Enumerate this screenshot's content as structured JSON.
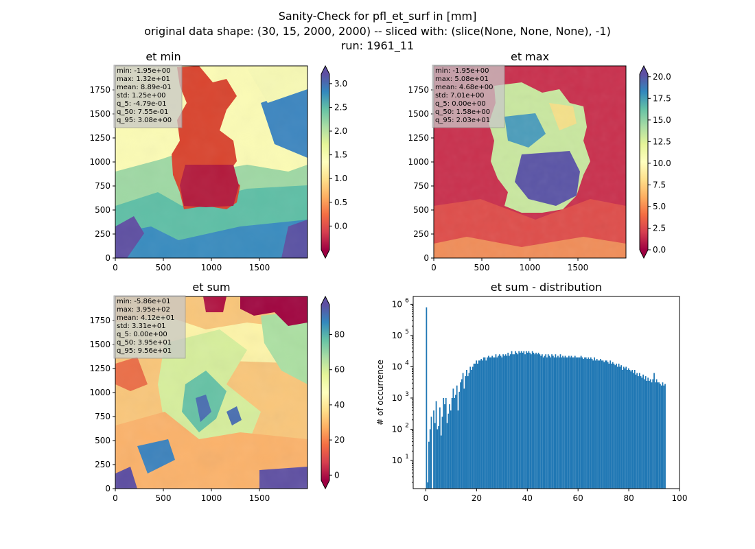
{
  "figure": {
    "title_lines": [
      "Sanity-Check for pfl_et_surf in [mm]",
      "original data shape: (30, 15, 2000, 2000) -- sliced with: (slice(None, None, None), -1)",
      "run: 1961_11"
    ]
  },
  "chart_data": [
    {
      "type": "heatmap",
      "title": "et min",
      "colormap": "Spectral",
      "xlim": [
        0,
        2000
      ],
      "ylim": [
        0,
        2000
      ],
      "xticks": [
        0,
        500,
        1000,
        1500
      ],
      "yticks": [
        0,
        250,
        500,
        750,
        1000,
        1250,
        1500,
        1750
      ],
      "colorbar": {
        "vmin": -0.5,
        "vmax": 3.2,
        "ticks": [
          0.0,
          0.5,
          1.0,
          1.5,
          2.0,
          2.5,
          3.0
        ],
        "tick_labels": [
          "0.0",
          "0.5",
          "1.0",
          "1.5",
          "2.0",
          "2.5",
          "3.0"
        ]
      },
      "stats": [
        "min: -1.95e+00",
        "max: 1.32e+01",
        "mean: 8.89e-01",
        "std: 1.25e+00",
        "q_5: -4.79e-01",
        "q_50: 7.55e-01",
        "q_95: 3.08e+00"
      ]
    },
    {
      "type": "heatmap",
      "title": "et max",
      "colormap": "Spectral",
      "xlim": [
        0,
        2000
      ],
      "ylim": [
        0,
        2000
      ],
      "xticks": [
        0,
        500,
        1000,
        1500
      ],
      "yticks": [
        0,
        250,
        500,
        750,
        1000,
        1250,
        1500,
        1750
      ],
      "colorbar": {
        "vmin": 0.0,
        "vmax": 20.3,
        "ticks": [
          0.0,
          2.5,
          5.0,
          7.5,
          10.0,
          12.5,
          15.0,
          17.5,
          20.0
        ],
        "tick_labels": [
          "0.0",
          "2.5",
          "5.0",
          "7.5",
          "10.0",
          "12.5",
          "15.0",
          "17.5",
          "20.0"
        ]
      },
      "stats": [
        "min: -1.95e+00",
        "max: 5.08e+01",
        "mean: 4.68e+00",
        "std: 7.01e+00",
        "q_5: 0.00e+00",
        "q_50: 1.58e+00",
        "q_95: 2.03e+01"
      ]
    },
    {
      "type": "heatmap",
      "title": "et sum",
      "colormap": "Spectral",
      "xlim": [
        0,
        2000
      ],
      "ylim": [
        0,
        2000
      ],
      "xticks": [
        0,
        500,
        1000,
        1500
      ],
      "yticks": [
        0,
        250,
        500,
        750,
        1000,
        1250,
        1500,
        1750
      ],
      "colorbar": {
        "vmin": -3,
        "vmax": 97,
        "ticks": [
          0,
          20,
          40,
          60,
          80
        ],
        "tick_labels": [
          "0",
          "20",
          "40",
          "60",
          "80"
        ]
      },
      "stats": [
        "min: -5.86e+01",
        "max: 3.95e+02",
        "mean: 4.12e+01",
        "std: 3.31e+01",
        "q_5: 0.00e+00",
        "q_50: 3.95e+01",
        "q_95: 9.56e+01"
      ]
    },
    {
      "type": "bar",
      "title": "et sum - distribution",
      "ylabel": "# of occurrence",
      "yscale": "log",
      "color": "#1f77b4",
      "xlim": [
        -5,
        100
      ],
      "ylim_log10": [
        0.1,
        6.25
      ],
      "xticks": [
        0,
        20,
        40,
        60,
        80,
        100
      ],
      "xtick_labels": [
        "0",
        "20",
        "40",
        "60",
        "80",
        "100"
      ],
      "yticks": [
        1,
        2,
        3,
        4,
        5,
        6
      ],
      "ytick_base": "10",
      "bin_start": 0,
      "bin_width": 0.48,
      "counts_log10": [
        5.9,
        0.3,
        1.6,
        2.0,
        2.4,
        0.1,
        2.6,
        2.2,
        2.9,
        2.0,
        2.1,
        2.7,
        1.8,
        2.4,
        3.0,
        2.8,
        3.0,
        2.2,
        2.5,
        2.8,
        2.6,
        3.0,
        3.3,
        3.0,
        3.1,
        3.4,
        2.6,
        3.2,
        3.5,
        3.6,
        3.8,
        3.3,
        3.7,
        3.9,
        3.7,
        3.8,
        4.0,
        3.9,
        4.0,
        4.1,
        4.1,
        4.2,
        4.1,
        4.2,
        4.2,
        4.25,
        4.2,
        4.3,
        4.3,
        4.2,
        4.3,
        4.35,
        4.3,
        4.3,
        4.35,
        4.3,
        4.3,
        4.4,
        4.3,
        4.35,
        4.4,
        4.35,
        4.3,
        4.4,
        4.35,
        4.4,
        4.35,
        4.45,
        4.35,
        4.4,
        4.5,
        4.4,
        4.4,
        4.5,
        4.45,
        4.4,
        4.5,
        4.45,
        4.5,
        4.45,
        4.5,
        4.4,
        4.5,
        4.45,
        4.5,
        4.45,
        4.4,
        4.5,
        4.45,
        4.4,
        4.45,
        4.4,
        4.45,
        4.4,
        4.35,
        4.4,
        4.3,
        4.35,
        4.4,
        4.3,
        4.4,
        4.35,
        4.3,
        4.4,
        4.35,
        4.3,
        4.4,
        4.3,
        4.35,
        4.3,
        4.4,
        4.3,
        4.35,
        4.3,
        4.35,
        4.3,
        4.3,
        4.35,
        4.3,
        4.35,
        4.3,
        4.3,
        4.35,
        4.3,
        4.3,
        4.3,
        4.3,
        4.35,
        4.3,
        4.25,
        4.3,
        4.3,
        4.25,
        4.3,
        4.25,
        4.3,
        4.25,
        4.2,
        4.3,
        4.2,
        4.25,
        4.2,
        4.2,
        4.25,
        4.2,
        4.2,
        4.15,
        4.2,
        4.2,
        4.15,
        4.1,
        4.2,
        4.1,
        4.15,
        4.1,
        4.05,
        4.1,
        4.0,
        4.1,
        4.0,
        4.05,
        3.9,
        4.0,
        3.95,
        4.0,
        3.9,
        3.95,
        3.9,
        3.85,
        3.9,
        3.8,
        3.9,
        3.75,
        3.8,
        3.7,
        3.8,
        3.7,
        3.65,
        3.75,
        3.6,
        3.7,
        3.55,
        3.65,
        3.55,
        3.6,
        3.5,
        3.6,
        3.8,
        3.5,
        3.6,
        3.5,
        3.5,
        3.45,
        3.4,
        3.5,
        3.4,
        3.45
      ]
    }
  ]
}
